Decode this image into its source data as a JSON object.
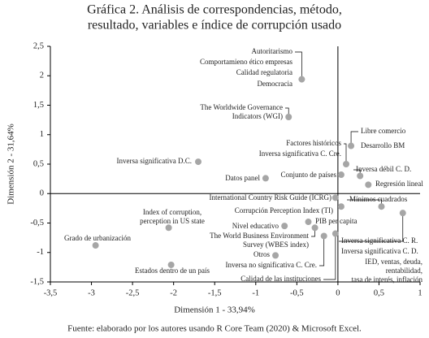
{
  "chart_data": {
    "type": "scatter",
    "title_lines": [
      "Gráfica 2. Análisis de correspondencias, método,",
      "resultado, variables e índice de corrupción usado"
    ],
    "x_label": "Dimensión 1 - 33,94%",
    "y_label": "Dimensión 2 - 31,64%",
    "source": "Fuente: elaborado por los autores usando R Core Team (2020) & Microsoft Excel.",
    "color": "#a6a6a6",
    "xlim": [
      -3.5,
      1
    ],
    "ylim": [
      -1.5,
      2.5
    ],
    "xticks": [
      {
        "value": -3.5,
        "label": "-3,5"
      },
      -3,
      {
        "value": -2.5,
        "label": "-2,5"
      },
      -2,
      {
        "value": -1.5,
        "label": "-1,5"
      },
      -1,
      {
        "value": -0.5,
        "label": "-0,5"
      },
      0,
      {
        "value": 0.5,
        "label": "0,5"
      },
      1
    ],
    "yticks": [
      {
        "value": 2.5,
        "label": "2,5"
      },
      2,
      {
        "value": 1.5,
        "label": "1,5"
      },
      1,
      {
        "value": 0.5,
        "label": "0,5"
      },
      0,
      {
        "value": -0.5,
        "label": "-0,5"
      },
      -1,
      {
        "value": -1.5,
        "label": "-1,5"
      }
    ],
    "points": [
      {
        "x": -0.44,
        "y": 1.94,
        "labels": [
          "Autoritarismo",
          "Comportamieno ético empresas",
          "Calidad regulatoria",
          "Democracia"
        ]
      },
      {
        "x": -0.6,
        "y": 1.3,
        "labels": [
          "The Worldwide Governance",
          "Indicators (WGI)"
        ]
      },
      {
        "x": 0.16,
        "y": 0.81,
        "labels": [
          "Libre comercio",
          "Desarrollo BM"
        ]
      },
      {
        "x": 0.1,
        "y": 0.5,
        "labels": [
          "Factores históricos",
          "Inversa significativa C. Cre."
        ]
      },
      {
        "x": 0.04,
        "y": 0.32,
        "labels": [
          "Conjunto de países"
        ]
      },
      {
        "x": 0.27,
        "y": 0.3,
        "labels": [
          "Inversa débil C. D."
        ]
      },
      {
        "x": 0.37,
        "y": 0.15,
        "labels": [
          "Regresión lineal"
        ]
      },
      {
        "x": -0.88,
        "y": 0.26,
        "labels": [
          "Datos panel"
        ]
      },
      {
        "x": -1.7,
        "y": 0.54,
        "labels": [
          "Inversa significativa D.C."
        ]
      },
      {
        "x": -0.03,
        "y": -0.07,
        "labels": [
          "International Country Risk Guide (ICRG)"
        ]
      },
      {
        "x": 0.04,
        "y": -0.22,
        "labels": [
          "Corrupción Perception Index (TI)"
        ]
      },
      {
        "x": 0.53,
        "y": -0.22,
        "labels": [
          "Mínimos cuadrados"
        ]
      },
      {
        "x": -0.36,
        "y": -0.48,
        "labels": [
          "PIB per capita"
        ]
      },
      {
        "x": -0.65,
        "y": -0.55,
        "labels": [
          "Nivel educativo"
        ]
      },
      {
        "x": -0.28,
        "y": -0.58,
        "labels": [
          "The World Business Environment",
          "Survey (WBES index)"
        ]
      },
      {
        "x": -0.76,
        "y": -1.05,
        "labels": [
          "Otros"
        ]
      },
      {
        "x": -0.17,
        "y": -0.72,
        "labels": [
          "Inversa no significativa C. Cre."
        ]
      },
      {
        "x": -0.03,
        "y": -0.68,
        "labels": [
          "Calidad de las instituciones"
        ]
      },
      {
        "x": 0.79,
        "y": -0.33,
        "labels": [
          "Inversa significativa C. R.",
          "Inversa significativa C. D.",
          "IED, ventas, deuda,",
          "rentabilidad,",
          "tasa de interés, inflación"
        ]
      },
      {
        "x": -2.06,
        "y": -0.58,
        "labels": [
          "Index of corruption,",
          "perception in US state"
        ]
      },
      {
        "x": -2.95,
        "y": -0.88,
        "labels": [
          "Grado de urbanización"
        ]
      },
      {
        "x": -2.03,
        "y": -1.21,
        "labels": [
          "Estados dentro de un país"
        ]
      }
    ]
  }
}
